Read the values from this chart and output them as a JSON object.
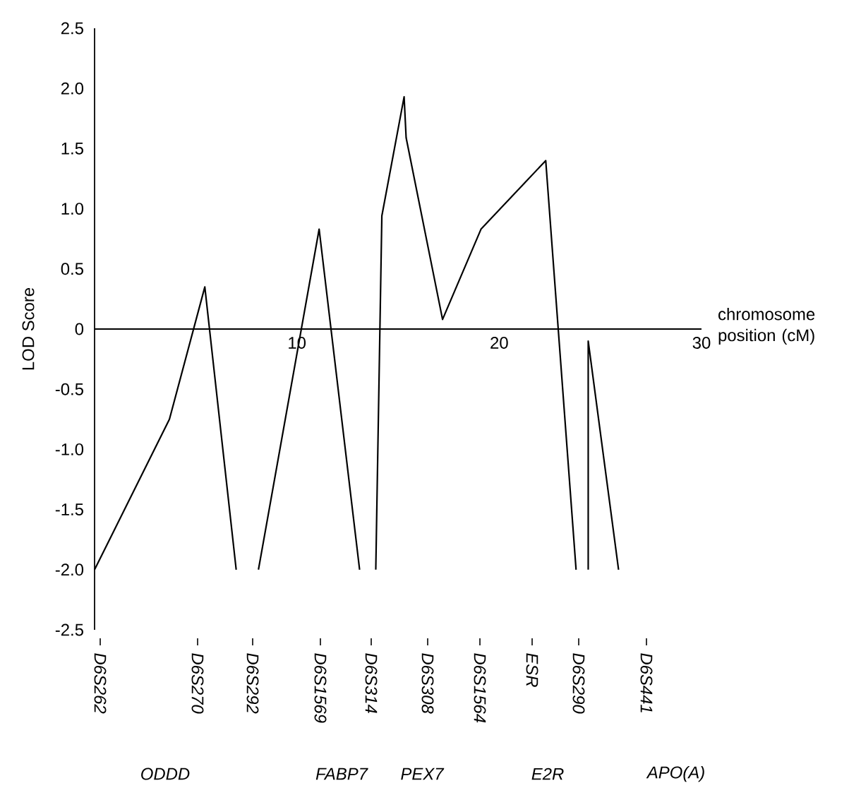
{
  "chart_data": {
    "type": "line",
    "xlabel": "chromosome position (cM)",
    "ylabel": "LOD Score",
    "xlim": [
      0,
      30
    ],
    "ylim": [
      -2.5,
      2.5
    ],
    "xticks": [
      10,
      20,
      30
    ],
    "yticks": [
      {
        "value": -2.5,
        "label": "-2.5"
      },
      {
        "value": -2.0,
        "label": "-2.0"
      },
      {
        "value": -1.5,
        "label": "-1.5"
      },
      {
        "value": -1.0,
        "label": "-1.0"
      },
      {
        "value": -0.5,
        "label": "-0.5"
      },
      0,
      {
        "value": 0.5,
        "label": "0.5"
      },
      {
        "value": 1.0,
        "label": "1.0"
      },
      {
        "value": 1.5,
        "label": "1.5"
      },
      {
        "value": 2.0,
        "label": "2.0"
      },
      {
        "value": 2.5,
        "label": "2.5"
      }
    ],
    "x": [
      0,
      3.7,
      5.45,
      7.0,
      null,
      8.1,
      11.1,
      13.1,
      null,
      13.9,
      14.2,
      15.3,
      15.4,
      17.2,
      19.1,
      22.3,
      23.8,
      null,
      24.4,
      24.4,
      25.9
    ],
    "series": [
      {
        "color": "#000000",
        "values": [
          -2.0,
          -0.75,
          0.35,
          -2.0,
          null,
          -2.0,
          0.83,
          -2.0,
          null,
          -2.0,
          0.94,
          1.93,
          1.59,
          0.08,
          0.83,
          1.4,
          -2.0,
          null,
          -2.0,
          -0.1,
          -2.0
        ]
      }
    ],
    "marker": "none",
    "line_style": "solid",
    "annotations": [
      "D6S262",
      "D6S270",
      "D6S292",
      "D6S1569",
      "D6S314",
      "D6S308",
      "D6S1564",
      "ESR",
      "D6S290",
      "D6S441",
      "ODDD",
      "FABP7",
      "PEX7",
      "E2R",
      "APO(A)"
    ]
  }
}
